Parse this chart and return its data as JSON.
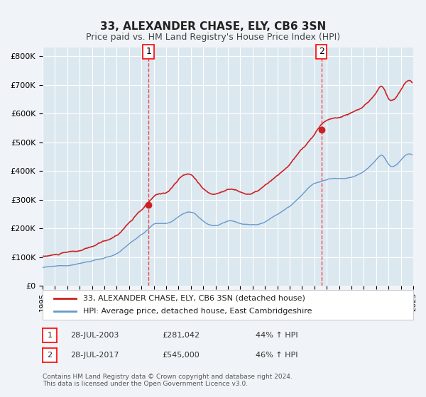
{
  "title": "33, ALEXANDER CHASE, ELY, CB6 3SN",
  "subtitle": "Price paid vs. HM Land Registry's House Price Index (HPI)",
  "legend_line1": "33, ALEXANDER CHASE, ELY, CB6 3SN (detached house)",
  "legend_line2": "HPI: Average price, detached house, East Cambridgeshire",
  "sale1_date": "28-JUL-2003",
  "sale1_price": "£281,042",
  "sale1_hpi": "44% ↑ HPI",
  "sale2_date": "28-JUL-2017",
  "sale2_price": "£545,000",
  "sale2_hpi": "46% ↑ HPI",
  "footnote": "Contains HM Land Registry data © Crown copyright and database right 2024.\nThis data is licensed under the Open Government Licence v3.0.",
  "hpi_color": "#6699cc",
  "price_color": "#cc2222",
  "marker_color": "#cc2222",
  "background_color": "#f0f4f8",
  "plot_bg_color": "#dce8f0",
  "grid_color": "#ffffff",
  "ylim": [
    0,
    800000
  ],
  "xlim_start": 1995,
  "xlim_end": 2025,
  "sale1_year": 2003.57,
  "sale1_value": 281042,
  "sale2_year": 2017.57,
  "sale2_value": 545000
}
